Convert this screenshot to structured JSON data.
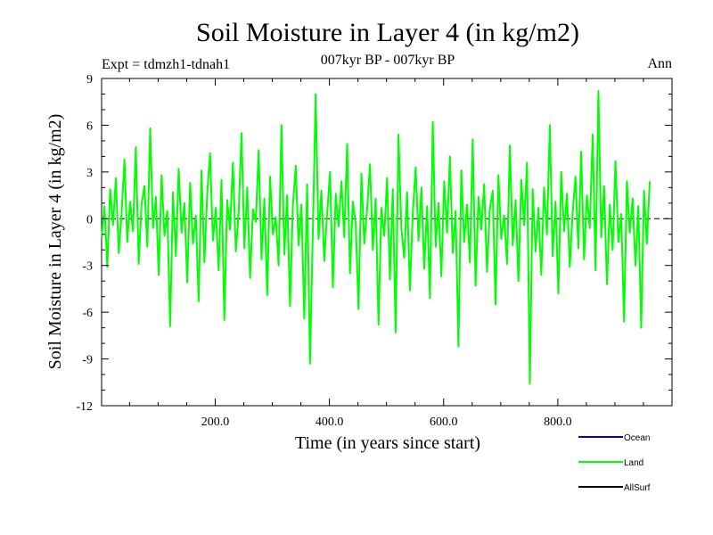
{
  "chart_data": {
    "type": "line",
    "title": "Soil Moisture in Layer 4 (in kg/m2)",
    "subtitle": "007kyr BP - 007kyr BP",
    "expt_label": "Expt = tdmzh1-tdnah1",
    "season_label": "Ann",
    "xlabel": "Time (in years since start)",
    "ylabel": "Soil Moisture in Layer 4 (in kg/m2)",
    "xlim": [
      1,
      1000
    ],
    "ylim": [
      -12,
      9
    ],
    "x_ticks": [
      200,
      400,
      600,
      800
    ],
    "x_tick_labels": [
      "200.0",
      "400.0",
      "600.0",
      "800.0"
    ],
    "y_ticks": [
      9,
      6,
      3,
      0,
      -3,
      -6,
      -9,
      -12
    ],
    "y_tick_labels": [
      "9",
      "6",
      "3",
      "0",
      "-3",
      "-6",
      "-9",
      "-12"
    ],
    "zero_line": true,
    "legend_position": "bottom-right",
    "series": [
      {
        "name": "Ocean",
        "color": "#0000cc",
        "values": []
      },
      {
        "name": "Land",
        "color": "#00ff00",
        "x_start": 1,
        "x_step": 5,
        "values": [
          -1.2,
          0.8,
          -3.1,
          1.9,
          -0.4,
          2.6,
          -2.2,
          0.3,
          3.8,
          -1.5,
          1.1,
          -0.8,
          4.6,
          -2.9,
          0.9,
          2.1,
          -1.8,
          5.8,
          -0.6,
          1.4,
          -3.6,
          2.8,
          -1.1,
          0.5,
          -6.9,
          1.7,
          -2.4,
          3.2,
          -0.9,
          1.0,
          -4.1,
          2.3,
          -1.6,
          0.2,
          -5.3,
          3.1,
          -2.8,
          1.6,
          4.2,
          -1.4,
          0.7,
          -3.3,
          2.5,
          -6.5,
          1.2,
          -0.7,
          3.6,
          -2.1,
          0.4,
          5.5,
          -1.9,
          2.0,
          -3.8,
          0.6,
          -0.2,
          4.4,
          -2.6,
          1.3,
          -4.9,
          2.7,
          -1.0,
          0.1,
          -3.0,
          6.0,
          -2.3,
          1.5,
          -5.6,
          0.8,
          3.4,
          -1.7,
          0.9,
          -6.4,
          2.2,
          -9.3,
          -0.8,
          8.0,
          -1.3,
          1.8,
          -2.7,
          0.4,
          3.0,
          -4.4,
          1.6,
          -0.5,
          2.4,
          -1.2,
          4.8,
          -3.5,
          1.1,
          -0.3,
          -5.8,
          2.9,
          -1.6,
          0.6,
          3.5,
          -2.0,
          1.3,
          -6.8,
          0.7,
          -1.1,
          2.6,
          -3.9,
          1.9,
          -7.3,
          5.4,
          -0.6,
          -2.5,
          1.7,
          -4.6,
          0.3,
          3.3,
          -1.4,
          2.0,
          -3.2,
          0.8,
          -5.1,
          6.2,
          -1.8,
          1.0,
          -3.7,
          2.4,
          -0.9,
          4.0,
          -2.2,
          0.5,
          -8.2,
          3.1,
          -1.5,
          0.9,
          -2.8,
          5.1,
          -4.3,
          1.4,
          -0.7,
          2.2,
          -3.4,
          0.6,
          1.8,
          -5.5,
          2.8,
          -1.3,
          0.2,
          -2.9,
          4.7,
          -1.7,
          1.2,
          -4.0,
          2.5,
          -0.4,
          3.6,
          -10.6,
          1.9,
          -2.1,
          0.7,
          -3.6,
          2.0,
          -1.0,
          6.0,
          -2.4,
          1.1,
          -4.8,
          3.0,
          -0.8,
          1.6,
          -3.1,
          0.4,
          2.7,
          -1.9,
          4.3,
          -2.6,
          1.5,
          -0.6,
          5.4,
          -3.3,
          8.2,
          -1.2,
          2.1,
          -4.2,
          0.9,
          -2.0,
          3.7,
          -1.5,
          0.3,
          -6.6,
          2.4,
          -0.9,
          1.3,
          -3.0,
          0.8,
          -7.0,
          1.8,
          -1.6,
          2.4
        ]
      },
      {
        "name": "AllSurf",
        "color": "#000000",
        "values": []
      }
    ]
  }
}
